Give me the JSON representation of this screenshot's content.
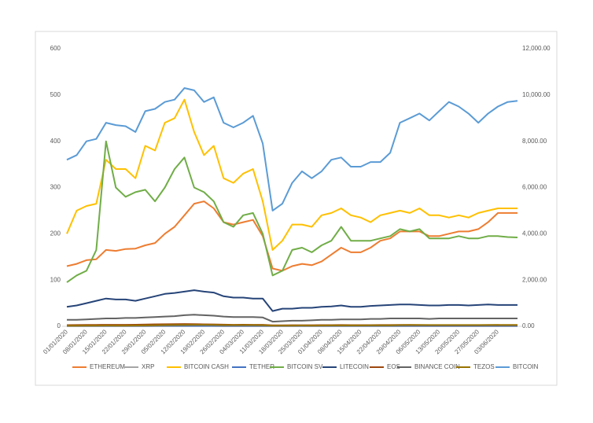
{
  "chart_data": {
    "type": "line",
    "categories": [
      "01/01/2020",
      null,
      "08/01/2020",
      null,
      "15/01/2020",
      null,
      "22/01/2020",
      null,
      "29/01/2020",
      null,
      "05/02/2020",
      null,
      "12/02/2020",
      null,
      "19/02/2020",
      null,
      "26/02/2020",
      null,
      "04/03/2020",
      null,
      "11/03/2020",
      null,
      "18/03/2020",
      null,
      "25/03/2020",
      null,
      "01/04/2020",
      null,
      "08/04/2020",
      null,
      "15/04/2020",
      null,
      "22/04/2020",
      null,
      "29/04/2020",
      null,
      "06/05/2020",
      null,
      "13/05/2020",
      null,
      "20/05/2020",
      null,
      "27/05/2020",
      null,
      "03/06/2020",
      null,
      null
    ],
    "ylim": [
      0,
      600
    ],
    "yticks": [
      0,
      100,
      200,
      300,
      400,
      500,
      600
    ],
    "y2lim": [
      0,
      12000
    ],
    "y2ticks": [
      {
        "value": 0,
        "label": "0.00"
      },
      {
        "value": 2000,
        "label": "2,000.00"
      },
      {
        "value": 4000,
        "label": "4,000.00"
      },
      {
        "value": 6000,
        "label": "6,000.00"
      },
      {
        "value": 8000,
        "label": "8,000.00"
      },
      {
        "value": 10000,
        "label": "10,000.00"
      },
      {
        "value": 12000,
        "label": "12,000.00"
      }
    ],
    "legend": "bottom",
    "series": [
      {
        "name": "ETHEREUM",
        "color": "#ed7d31",
        "values": [
          130,
          135,
          143,
          145,
          165,
          163,
          167,
          168,
          175,
          180,
          200,
          215,
          240,
          265,
          270,
          255,
          225,
          220,
          225,
          230,
          195,
          125,
          120,
          130,
          135,
          132,
          140,
          155,
          170,
          160,
          160,
          170,
          185,
          190,
          205,
          205,
          205,
          195,
          195,
          200,
          205,
          205,
          210,
          225,
          245,
          245,
          245
        ]
      },
      {
        "name": "XRP",
        "color": "#a5a5a5",
        "values": [
          0.19,
          0.19,
          0.2,
          0.21,
          0.23,
          0.23,
          0.23,
          0.22,
          0.24,
          0.26,
          0.28,
          0.3,
          0.32,
          0.28,
          0.27,
          0.26,
          0.24,
          0.23,
          0.23,
          0.22,
          0.2,
          0.15,
          0.15,
          0.16,
          0.17,
          0.17,
          0.17,
          0.18,
          0.2,
          0.19,
          0.19,
          0.19,
          0.19,
          0.2,
          0.22,
          0.21,
          0.21,
          0.2,
          0.2,
          0.2,
          0.2,
          0.2,
          0.2,
          0.2,
          0.21,
          0.2,
          0.2
        ]
      },
      {
        "name": "BITCOIN CASH",
        "color": "#ffc000",
        "values": [
          200,
          250,
          260,
          265,
          360,
          340,
          340,
          320,
          390,
          380,
          440,
          450,
          490,
          420,
          370,
          390,
          320,
          310,
          330,
          340,
          270,
          165,
          185,
          220,
          220,
          215,
          240,
          245,
          255,
          240,
          235,
          225,
          240,
          245,
          250,
          245,
          255,
          240,
          240,
          235,
          240,
          235,
          245,
          250,
          255,
          255,
          255
        ]
      },
      {
        "name": "TETHER",
        "color": "#4472c4",
        "values": [
          1,
          1,
          1,
          1,
          1,
          1,
          1,
          1,
          1,
          1,
          1,
          1,
          1,
          1,
          1,
          1,
          1,
          1,
          1,
          1,
          1,
          1,
          1,
          1,
          1,
          1,
          1,
          1,
          1,
          1,
          1,
          1,
          1,
          1,
          1,
          1,
          1,
          1,
          1,
          1,
          1,
          1,
          1,
          1,
          1,
          1,
          1
        ]
      },
      {
        "name": "BITCOIN SV",
        "color": "#70ad47",
        "values": [
          95,
          110,
          120,
          165,
          400,
          300,
          280,
          290,
          295,
          270,
          300,
          340,
          365,
          300,
          290,
          270,
          225,
          215,
          240,
          245,
          200,
          110,
          120,
          165,
          170,
          160,
          175,
          185,
          215,
          185,
          185,
          185,
          190,
          195,
          210,
          205,
          210,
          190,
          190,
          190,
          195,
          190,
          190,
          195,
          195,
          193,
          192
        ]
      },
      {
        "name": "LITECOIN",
        "color": "#264478",
        "values": [
          42,
          45,
          50,
          55,
          60,
          58,
          58,
          55,
          60,
          65,
          70,
          72,
          75,
          78,
          75,
          73,
          65,
          62,
          62,
          60,
          60,
          33,
          38,
          38,
          40,
          40,
          42,
          43,
          45,
          42,
          42,
          44,
          45,
          46,
          47,
          47,
          46,
          45,
          45,
          46,
          46,
          45,
          46,
          47,
          46,
          46,
          46
        ]
      },
      {
        "name": "EOS",
        "color": "#9e480e",
        "values": [
          2.6,
          2.7,
          3,
          3.1,
          3.3,
          3.2,
          3.3,
          3.4,
          3.8,
          4.2,
          4.5,
          4.8,
          5,
          4.6,
          4.2,
          4,
          3.5,
          3.3,
          3.4,
          3.3,
          3.2,
          2,
          2.2,
          2.3,
          2.4,
          2.4,
          2.5,
          2.6,
          2.7,
          2.6,
          2.6,
          2.6,
          2.7,
          2.8,
          3,
          2.9,
          2.8,
          2.6,
          2.6,
          2.6,
          2.6,
          2.6,
          2.6,
          2.7,
          2.8,
          2.7,
          2.7
        ]
      },
      {
        "name": "BINANCE COIN",
        "color": "#636363",
        "values": [
          14,
          14,
          15,
          16,
          17,
          17,
          18,
          18,
          19,
          20,
          21,
          22,
          24,
          25,
          24,
          23,
          21,
          20,
          20,
          20,
          19,
          10,
          11,
          12,
          12,
          13,
          14,
          14,
          15,
          15,
          15,
          16,
          16,
          17,
          17,
          17,
          17,
          16,
          17,
          17,
          17,
          17,
          17,
          17,
          17,
          17,
          17
        ]
      },
      {
        "name": "TEZOS",
        "color": "#997300",
        "values": [
          1.4,
          1.4,
          1.5,
          1.6,
          1.7,
          1.6,
          1.6,
          1.7,
          1.9,
          2.2,
          2.6,
          2.8,
          3.1,
          3.3,
          3.2,
          3,
          2.6,
          2.5,
          2.5,
          2.5,
          2.4,
          1.5,
          1.5,
          1.6,
          1.7,
          1.6,
          1.7,
          1.8,
          1.9,
          1.8,
          1.9,
          2,
          2.1,
          2.2,
          2.6,
          2.7,
          2.8,
          2.7,
          2.7,
          2.8,
          2.8,
          2.8,
          2.8,
          2.8,
          2.9,
          2.8,
          2.8
        ]
      },
      {
        "name": "BITCOIN",
        "color": "#5b9bd5",
        "axis": "y2",
        "values": [
          7200,
          7400,
          8000,
          8100,
          8800,
          8700,
          8650,
          8400,
          9300,
          9400,
          9700,
          9800,
          10300,
          10200,
          9700,
          9900,
          8800,
          8600,
          8800,
          9100,
          7900,
          5000,
          5300,
          6200,
          6700,
          6400,
          6700,
          7200,
          7300,
          6900,
          6900,
          7100,
          7100,
          7500,
          8800,
          9000,
          9200,
          8900,
          9300,
          9700,
          9500,
          9200,
          8800,
          9200,
          9500,
          9700,
          9750
        ]
      }
    ]
  }
}
